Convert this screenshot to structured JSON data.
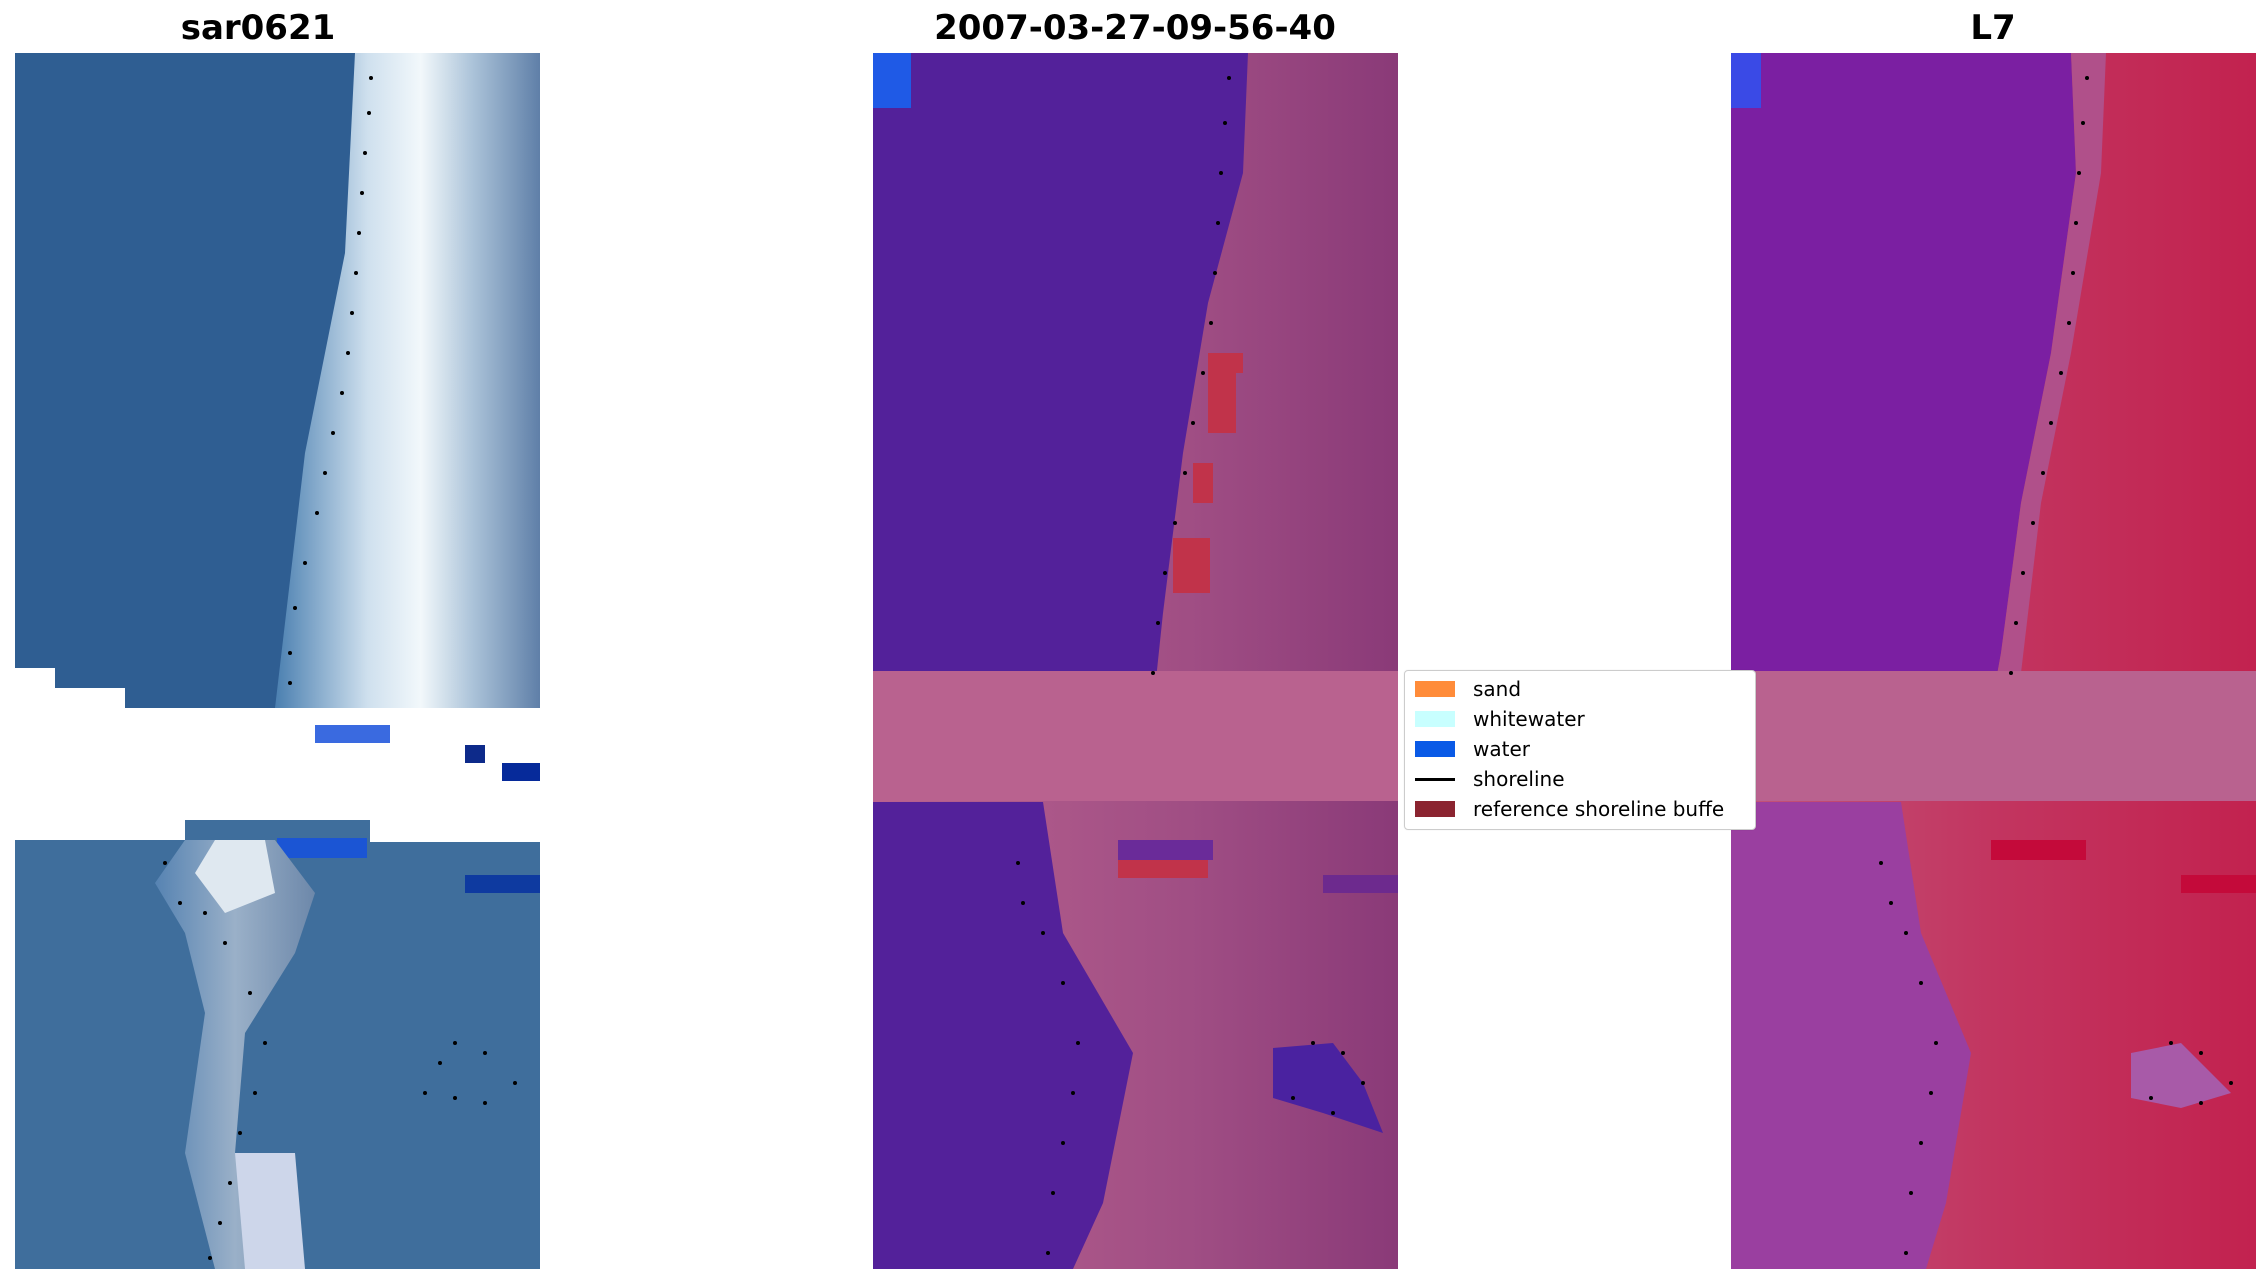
{
  "titles": {
    "left": "sar0621",
    "middle": "2007-03-27-09-56-40",
    "right": "L7"
  },
  "legend": {
    "items": [
      {
        "label": "sand",
        "color": "#ff8c3a",
        "kind": "patch"
      },
      {
        "label": "whitewater",
        "color": "#c8ffff",
        "kind": "patch"
      },
      {
        "label": "water",
        "color": "#0a5ae6",
        "kind": "patch"
      },
      {
        "label": "shoreline",
        "color": "#000000",
        "kind": "line"
      },
      {
        "label": "reference shoreline buffe",
        "color": "#8b2430",
        "kind": "patch"
      }
    ]
  },
  "colors": {
    "sea_rgb": "#2f5e92",
    "surf_rgb": "#dce8f2",
    "class_water": "#53219a",
    "class_land": "#b9628f",
    "class_buffer": "#c1334a",
    "index_water": "#7b1fa2",
    "index_land": "#c2224f"
  }
}
